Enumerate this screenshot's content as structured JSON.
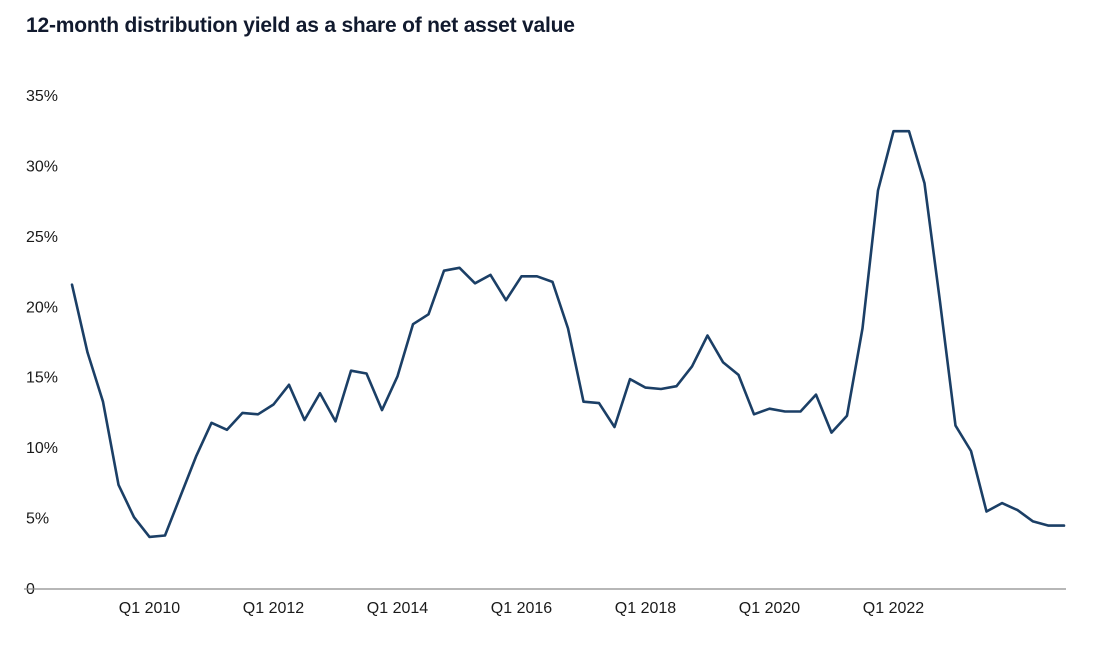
{
  "chart_data": {
    "type": "line",
    "title": "12-month distribution yield as a share of net asset value",
    "xlabel": "",
    "ylabel": "",
    "ylim": [
      0,
      35
    ],
    "grid": false,
    "y_ticks": [
      {
        "value": 0,
        "label": "0"
      },
      {
        "value": 5,
        "label": "5%"
      },
      {
        "value": 10,
        "label": "10%"
      },
      {
        "value": 15,
        "label": "15%"
      },
      {
        "value": 20,
        "label": "20%"
      },
      {
        "value": 25,
        "label": "25%"
      },
      {
        "value": 30,
        "label": "30%"
      },
      {
        "value": 35,
        "label": "35%"
      }
    ],
    "x_ticks": [
      {
        "x": "2010-Q1",
        "label": "Q1 2010"
      },
      {
        "x": "2012-Q1",
        "label": "Q1 2012"
      },
      {
        "x": "2014-Q1",
        "label": "Q1 2014"
      },
      {
        "x": "2016-Q1",
        "label": "Q1 2016"
      },
      {
        "x": "2018-Q1",
        "label": "Q1 2018"
      },
      {
        "x": "2020-Q1",
        "label": "Q1 2020"
      },
      {
        "x": "2022-Q1",
        "label": "Q1 2022"
      }
    ],
    "x": [
      "2008-Q4",
      "2009-Q1",
      "2009-Q2",
      "2009-Q3",
      "2009-Q4",
      "2010-Q1",
      "2010-Q2",
      "2010-Q3",
      "2010-Q4",
      "2011-Q1",
      "2011-Q2",
      "2011-Q3",
      "2011-Q4",
      "2012-Q1",
      "2012-Q2",
      "2012-Q3",
      "2012-Q4",
      "2013-Q1",
      "2013-Q2",
      "2013-Q3",
      "2013-Q4",
      "2014-Q1",
      "2014-Q2",
      "2014-Q3",
      "2014-Q4",
      "2015-Q1",
      "2015-Q2",
      "2015-Q3",
      "2015-Q4",
      "2016-Q1",
      "2016-Q2",
      "2016-Q3",
      "2016-Q4",
      "2017-Q1",
      "2017-Q2",
      "2017-Q3",
      "2017-Q4",
      "2018-Q1",
      "2018-Q2",
      "2018-Q3",
      "2018-Q4",
      "2019-Q1",
      "2019-Q2",
      "2019-Q3",
      "2019-Q4",
      "2020-Q1",
      "2020-Q2",
      "2020-Q3",
      "2020-Q4",
      "2021-Q1",
      "2021-Q2",
      "2021-Q3",
      "2021-Q4",
      "2022-Q1",
      "2022-Q2",
      "2022-Q3",
      "2022-Q4",
      "2023-Q1",
      "2023-Q2",
      "2023-Q3",
      "2023-Q4",
      "2024-Q1",
      "2024-Q2",
      "2024-Q3",
      "2024-Q4"
    ],
    "series": [
      {
        "values": [
          21.6,
          16.8,
          13.3,
          7.4,
          5.1,
          3.7,
          3.8,
          6.6,
          9.4,
          11.8,
          11.3,
          12.5,
          12.4,
          13.1,
          14.5,
          12.0,
          13.9,
          11.9,
          15.5,
          15.3,
          12.7,
          15.1,
          18.8,
          19.5,
          22.6,
          22.8,
          21.7,
          22.3,
          20.5,
          22.2,
          22.2,
          21.8,
          18.5,
          13.3,
          13.2,
          11.5,
          14.9,
          14.3,
          14.2,
          14.4,
          15.8,
          18.0,
          16.1,
          15.2,
          12.4,
          12.8,
          12.6,
          12.6,
          13.8,
          11.1,
          12.3,
          18.5,
          28.3,
          32.5,
          32.5,
          28.8,
          20.4,
          11.6,
          9.8,
          5.5,
          6.1,
          5.6,
          4.8,
          4.5,
          4.5
        ],
        "color": "#1b3f66"
      }
    ]
  }
}
